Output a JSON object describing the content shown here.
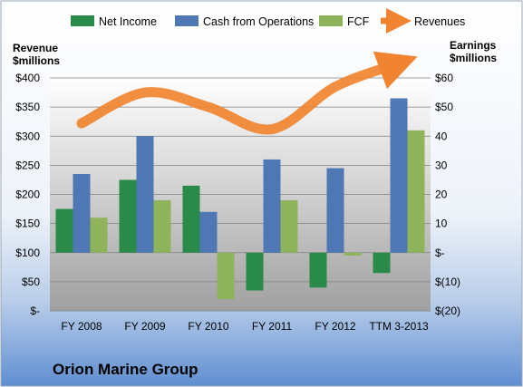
{
  "chart_data": {
    "type": "bar",
    "title": "Orion Marine Group",
    "categories": [
      "FY 2008",
      "FY 2009",
      "FY 2010",
      "FY 2011",
      "FY 2012",
      "TTM 3-2013"
    ],
    "series": [
      {
        "name": "Net Income",
        "axis": "right",
        "kind": "bar",
        "color": "#2a8a4a",
        "values": [
          15,
          25,
          23,
          -13,
          -12,
          -7
        ]
      },
      {
        "name": "Cash from Operations",
        "axis": "right",
        "kind": "bar",
        "color": "#4f77b4",
        "values": [
          27,
          40,
          14,
          32,
          29,
          53
        ]
      },
      {
        "name": "FCF",
        "axis": "right",
        "kind": "bar",
        "color": "#8fb35a",
        "values": [
          12,
          18,
          -16,
          18,
          -1,
          42
        ]
      },
      {
        "name": "Revenues",
        "axis": "left",
        "kind": "line",
        "color": "#f08430",
        "values": [
          322,
          375,
          350,
          312,
          385,
          425
        ]
      }
    ],
    "left_axis": {
      "label_line1": "Revenue",
      "label_line2": "$millions",
      "range": [
        0,
        400
      ],
      "ticks": [
        "$-",
        "$50",
        "$100",
        "$150",
        "$200",
        "$250",
        "$300",
        "$350",
        "$400"
      ]
    },
    "right_axis": {
      "label_line1": "Earnings",
      "label_line2": "$millions",
      "range": [
        -20,
        60
      ],
      "ticks": [
        "$(20)",
        "$(10)",
        "$-",
        "10",
        "20",
        "30",
        "40",
        "$50",
        "$60"
      ]
    },
    "legend_position": "top",
    "grid": true
  }
}
